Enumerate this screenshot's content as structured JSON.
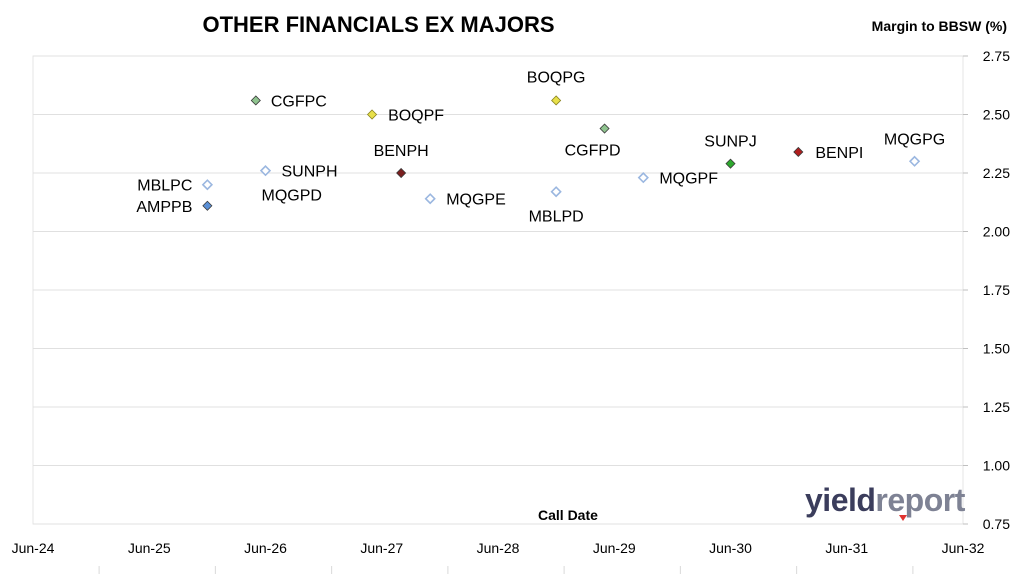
{
  "chart_data": {
    "type": "scatter",
    "title": "OTHER FINANCIALS EX MAJORS",
    "xlabel": "Call Date",
    "ylabel": "Margin to BBSW (%)",
    "x_ticks": [
      "Jun-24",
      "Jun-25",
      "Jun-26",
      "Jun-27",
      "Jun-28",
      "Jun-29",
      "Jun-30",
      "Jun-31",
      "Jun-32"
    ],
    "y_ticks": [
      "0.75",
      "1.00",
      "1.25",
      "1.50",
      "1.75",
      "2.00",
      "2.25",
      "2.50",
      "2.75"
    ],
    "xlim": [
      "2024-06",
      "2032-06"
    ],
    "ylim": [
      0.75,
      2.75
    ],
    "grid": "horizontal",
    "points": [
      {
        "name": "MBLPC",
        "x": "2025-12",
        "y": 2.2,
        "marker": "hollow",
        "color": "#9bb7e0"
      },
      {
        "name": "AMPPB",
        "x": "2025-12",
        "y": 2.11,
        "marker": "filled",
        "color": "#5a8fd6"
      },
      {
        "name": "CGFPC",
        "x": "2026-05",
        "y": 2.56,
        "marker": "filled",
        "color": "#8fc48f"
      },
      {
        "name": "SUNPH",
        "x": "2026-06",
        "y": 2.26,
        "marker": "filled",
        "color": "#5a9e3a"
      },
      {
        "name": "MQGPD",
        "x": "2026-06",
        "y": 2.26,
        "marker": "hollow",
        "color": "#9bb7e0"
      },
      {
        "name": "BOQPF",
        "x": "2027-05",
        "y": 2.5,
        "marker": "filled",
        "color": "#e8e04a"
      },
      {
        "name": "BENPH",
        "x": "2027-08",
        "y": 2.25,
        "marker": "filled",
        "color": "#7a1f1f"
      },
      {
        "name": "MQGPE",
        "x": "2027-11",
        "y": 2.14,
        "marker": "hollow",
        "color": "#9bb7e0"
      },
      {
        "name": "BOQPG",
        "x": "2028-12",
        "y": 2.56,
        "marker": "filled",
        "color": "#e8e04a"
      },
      {
        "name": "MBLPD",
        "x": "2028-12",
        "y": 2.17,
        "marker": "hollow",
        "color": "#9bb7e0"
      },
      {
        "name": "CGFPD",
        "x": "2029-05",
        "y": 2.44,
        "marker": "filled",
        "color": "#8fc48f"
      },
      {
        "name": "MQGPF",
        "x": "2029-09",
        "y": 2.23,
        "marker": "hollow",
        "color": "#9bb7e0"
      },
      {
        "name": "SUNPJ",
        "x": "2030-06",
        "y": 2.29,
        "marker": "filled",
        "color": "#2ea82e"
      },
      {
        "name": "BENPI",
        "x": "2031-01",
        "y": 2.34,
        "marker": "filled",
        "color": "#b01e1e"
      },
      {
        "name": "MQGPG",
        "x": "2032-01",
        "y": 2.3,
        "marker": "hollow",
        "color": "#9bb7e0"
      }
    ]
  },
  "logo": {
    "part1": "yield",
    "part2": "report"
  }
}
